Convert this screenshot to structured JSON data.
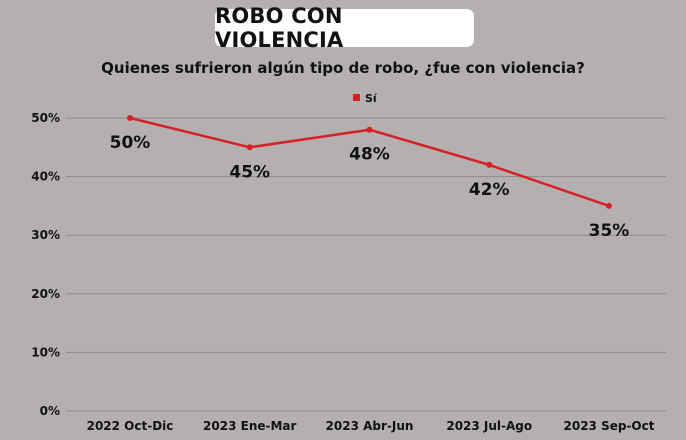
{
  "chart_data": {
    "type": "line",
    "title": "ROBO CON VIOLENCIA",
    "subtitle": "Quienes sufrieron algún tipo de robo, ¿fue con violencia?",
    "categories": [
      "2022 Oct-Dic",
      "2023 Ene-Mar",
      "2023 Abr-Jun",
      "2023 Jul-Ago",
      "2023 Sep-Oct"
    ],
    "series": [
      {
        "name": "Sí",
        "values": [
          50,
          45,
          48,
          42,
          35
        ],
        "labels": [
          "50%",
          "45%",
          "48%",
          "42%",
          "35%"
        ],
        "color": "#d62028"
      }
    ],
    "y_ticks": [
      "0%",
      "10%",
      "20%",
      "30%",
      "40%",
      "50%"
    ],
    "ylim": [
      0,
      50
    ],
    "grid": true,
    "legend_position": "top-center"
  },
  "colors": {
    "background": "#b5b0b0",
    "gridline": "#8f8a8a",
    "line": "#d62028"
  }
}
